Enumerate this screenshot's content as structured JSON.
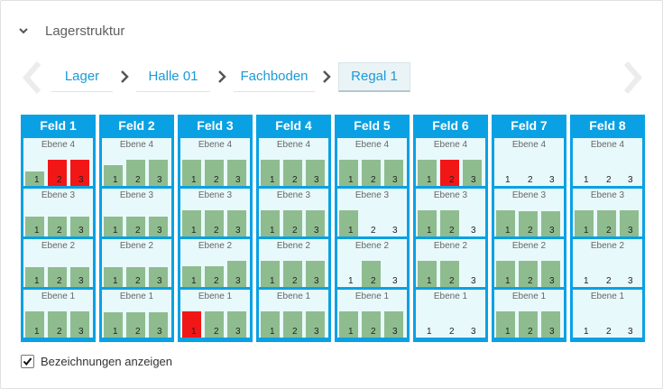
{
  "section": {
    "title": "Lagerstruktur",
    "expanded": true
  },
  "breadcrumb": [
    {
      "label": "Lager",
      "active": false
    },
    {
      "label": "Halle 01",
      "active": false
    },
    {
      "label": "Fachboden",
      "active": false
    },
    {
      "label": "Regal 1",
      "active": true
    }
  ],
  "colors": {
    "accent": "#1a9bd7",
    "frame": "#0aa1e4",
    "shelf_bg": "#e8f9fb",
    "box_ok": "#8fbc8f",
    "box_alert": "#f21717"
  },
  "slot_labels": [
    "1",
    "2",
    "3"
  ],
  "felder": [
    {
      "name": "Feld 1",
      "ebenen": [
        {
          "name": "Ebene 4",
          "slots": [
            {
              "fill": 0.55,
              "alert": false
            },
            {
              "fill": 1.0,
              "alert": true
            },
            {
              "fill": 1.0,
              "alert": true
            }
          ]
        },
        {
          "name": "Ebene 3",
          "slots": [
            {
              "fill": 0.75,
              "alert": false
            },
            {
              "fill": 0.75,
              "alert": false
            },
            {
              "fill": 0.75,
              "alert": false
            }
          ]
        },
        {
          "name": "Ebene 2",
          "slots": [
            {
              "fill": 0.75,
              "alert": false
            },
            {
              "fill": 0.75,
              "alert": false
            },
            {
              "fill": 0.75,
              "alert": false
            }
          ]
        },
        {
          "name": "Ebene 1",
          "slots": [
            {
              "fill": 1.0,
              "alert": false
            },
            {
              "fill": 1.0,
              "alert": false
            },
            {
              "fill": 1.0,
              "alert": false
            }
          ]
        }
      ]
    },
    {
      "name": "Feld 2",
      "ebenen": [
        {
          "name": "Ebene 4",
          "slots": [
            {
              "fill": 0.8,
              "alert": false
            },
            {
              "fill": 1.0,
              "alert": false
            },
            {
              "fill": 1.0,
              "alert": false
            }
          ]
        },
        {
          "name": "Ebene 3",
          "slots": [
            {
              "fill": 0.75,
              "alert": false
            },
            {
              "fill": 0.75,
              "alert": false
            },
            {
              "fill": 0.75,
              "alert": false
            }
          ]
        },
        {
          "name": "Ebene 2",
          "slots": [
            {
              "fill": 0.75,
              "alert": false
            },
            {
              "fill": 0.75,
              "alert": false
            },
            {
              "fill": 0.75,
              "alert": false
            }
          ]
        },
        {
          "name": "Ebene 1",
          "slots": [
            {
              "fill": 0.95,
              "alert": false
            },
            {
              "fill": 0.95,
              "alert": false
            },
            {
              "fill": 0.95,
              "alert": false
            }
          ]
        }
      ]
    },
    {
      "name": "Feld 3",
      "ebenen": [
        {
          "name": "Ebene 4",
          "slots": [
            {
              "fill": 1.0,
              "alert": false
            },
            {
              "fill": 1.0,
              "alert": false
            },
            {
              "fill": 1.0,
              "alert": false
            }
          ]
        },
        {
          "name": "Ebene 3",
          "slots": [
            {
              "fill": 1.0,
              "alert": false
            },
            {
              "fill": 1.0,
              "alert": false
            },
            {
              "fill": 1.0,
              "alert": false
            }
          ]
        },
        {
          "name": "Ebene 2",
          "slots": [
            {
              "fill": 0.8,
              "alert": false
            },
            {
              "fill": 0.8,
              "alert": false
            },
            {
              "fill": 1.0,
              "alert": false
            }
          ]
        },
        {
          "name": "Ebene 1",
          "slots": [
            {
              "fill": 1.0,
              "alert": true
            },
            {
              "fill": 1.0,
              "alert": false
            },
            {
              "fill": 1.0,
              "alert": false
            }
          ]
        }
      ]
    },
    {
      "name": "Feld 4",
      "ebenen": [
        {
          "name": "Ebene 4",
          "slots": [
            {
              "fill": 1.0,
              "alert": false
            },
            {
              "fill": 1.0,
              "alert": false
            },
            {
              "fill": 1.0,
              "alert": false
            }
          ]
        },
        {
          "name": "Ebene 3",
          "slots": [
            {
              "fill": 1.0,
              "alert": false
            },
            {
              "fill": 1.0,
              "alert": false
            },
            {
              "fill": 1.0,
              "alert": false
            }
          ]
        },
        {
          "name": "Ebene 2",
          "slots": [
            {
              "fill": 1.0,
              "alert": false
            },
            {
              "fill": 1.0,
              "alert": false
            },
            {
              "fill": 1.0,
              "alert": false
            }
          ]
        },
        {
          "name": "Ebene 1",
          "slots": [
            {
              "fill": 1.0,
              "alert": false
            },
            {
              "fill": 1.0,
              "alert": false
            },
            {
              "fill": 1.0,
              "alert": false
            }
          ]
        }
      ]
    },
    {
      "name": "Feld 5",
      "ebenen": [
        {
          "name": "Ebene 4",
          "slots": [
            {
              "fill": 1.0,
              "alert": false
            },
            {
              "fill": 1.0,
              "alert": false
            },
            {
              "fill": 1.0,
              "alert": false
            }
          ]
        },
        {
          "name": "Ebene 3",
          "slots": [
            {
              "fill": 1.0,
              "alert": false
            },
            {
              "fill": 0,
              "alert": false
            },
            {
              "fill": 0,
              "alert": false
            }
          ]
        },
        {
          "name": "Ebene 2",
          "slots": [
            {
              "fill": 0,
              "alert": false
            },
            {
              "fill": 1.0,
              "alert": false
            },
            {
              "fill": 0,
              "alert": false
            }
          ]
        },
        {
          "name": "Ebene 1",
          "slots": [
            {
              "fill": 1.0,
              "alert": false
            },
            {
              "fill": 1.0,
              "alert": false
            },
            {
              "fill": 1.0,
              "alert": false
            }
          ]
        }
      ]
    },
    {
      "name": "Feld 6",
      "ebenen": [
        {
          "name": "Ebene 4",
          "slots": [
            {
              "fill": 1.0,
              "alert": false
            },
            {
              "fill": 1.0,
              "alert": true
            },
            {
              "fill": 1.0,
              "alert": false
            }
          ]
        },
        {
          "name": "Ebene 3",
          "slots": [
            {
              "fill": 1.0,
              "alert": false
            },
            {
              "fill": 1.0,
              "alert": false
            },
            {
              "fill": 0,
              "alert": false
            }
          ]
        },
        {
          "name": "Ebene 2",
          "slots": [
            {
              "fill": 1.0,
              "alert": false
            },
            {
              "fill": 1.0,
              "alert": false
            },
            {
              "fill": 0,
              "alert": false
            }
          ]
        },
        {
          "name": "Ebene 1",
          "slots": [
            {
              "fill": 0,
              "alert": false
            },
            {
              "fill": 0,
              "alert": false
            },
            {
              "fill": 0,
              "alert": false
            }
          ]
        }
      ]
    },
    {
      "name": "Feld 7",
      "ebenen": [
        {
          "name": "Ebene 4",
          "slots": [
            {
              "fill": 0,
              "alert": false
            },
            {
              "fill": 0,
              "alert": false
            },
            {
              "fill": 0,
              "alert": false
            }
          ]
        },
        {
          "name": "Ebene 3",
          "slots": [
            {
              "fill": 1.0,
              "alert": false
            },
            {
              "fill": 0.95,
              "alert": false
            },
            {
              "fill": 0.95,
              "alert": false
            }
          ]
        },
        {
          "name": "Ebene 2",
          "slots": [
            {
              "fill": 1.0,
              "alert": false
            },
            {
              "fill": 1.0,
              "alert": false
            },
            {
              "fill": 1.0,
              "alert": false
            }
          ]
        },
        {
          "name": "Ebene 1",
          "slots": [
            {
              "fill": 1.0,
              "alert": false
            },
            {
              "fill": 1.0,
              "alert": false
            },
            {
              "fill": 1.0,
              "alert": false
            }
          ]
        }
      ]
    },
    {
      "name": "Feld 8",
      "ebenen": [
        {
          "name": "Ebene 4",
          "slots": [
            {
              "fill": 0,
              "alert": false
            },
            {
              "fill": 0,
              "alert": false
            },
            {
              "fill": 0,
              "alert": false
            }
          ]
        },
        {
          "name": "Ebene 3",
          "slots": [
            {
              "fill": 1.0,
              "alert": false
            },
            {
              "fill": 1.0,
              "alert": false
            },
            {
              "fill": 1.0,
              "alert": false
            }
          ]
        },
        {
          "name": "Ebene 2",
          "slots": [
            {
              "fill": 0,
              "alert": false
            },
            {
              "fill": 0,
              "alert": false
            },
            {
              "fill": 0,
              "alert": false
            }
          ]
        },
        {
          "name": "Ebene 1",
          "slots": [
            {
              "fill": 0,
              "alert": false
            },
            {
              "fill": 0,
              "alert": false
            },
            {
              "fill": 0,
              "alert": false
            }
          ]
        }
      ]
    }
  ],
  "show_labels": {
    "label": "Bezeichnungen anzeigen",
    "checked": true
  }
}
